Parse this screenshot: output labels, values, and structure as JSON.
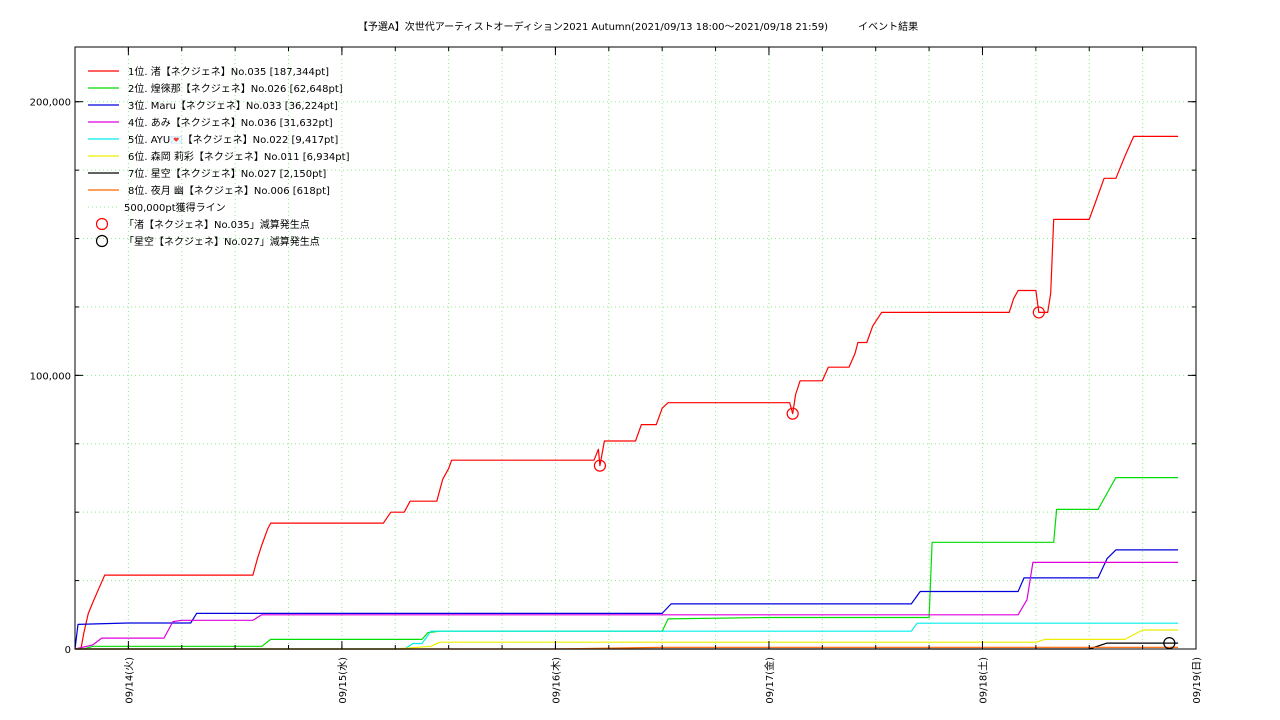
{
  "chart_data": {
    "type": "line",
    "title": "【予選A】次世代アーティストオーディション2021 Autumn(2021/09/13 18:00～2021/09/18 21:59)　　　イベント結果",
    "xlabel": "",
    "ylabel": "",
    "x_unit": "date (2021)",
    "xlim": [
      "09/13 18:00",
      "09/19 00:00"
    ],
    "ylim": [
      0,
      220000
    ],
    "y_ticks": [
      {
        "value": 0,
        "label": "0"
      },
      {
        "value": 100000,
        "label": "100,000"
      },
      {
        "value": 200000,
        "label": "200,000"
      }
    ],
    "x_ticks": [
      {
        "value": "09/14 00:00",
        "label": "09/14(火)"
      },
      {
        "value": "09/15 00:00",
        "label": "09/15(水)"
      },
      {
        "value": "09/16 00:00",
        "label": "09/16(木)"
      },
      {
        "value": "09/17 00:00",
        "label": "09/17(金)"
      },
      {
        "value": "09/18 00:00",
        "label": "09/18(土)"
      },
      {
        "value": "09/19 00:00",
        "label": "09/19(日)"
      }
    ],
    "grid": true,
    "legend_position": "top-left",
    "reference_line": {
      "value": 500000,
      "label": "500,000pt獲得ライン",
      "color": "#88ee88"
    },
    "series": [
      {
        "name": "1位. 渚【ネクジェネ】No.035 [187,344pt]",
        "color": "#ff0000",
        "points": [
          [
            "09/13 18:00",
            0
          ],
          [
            "09/13 18:40",
            0
          ],
          [
            "09/13 19:00",
            6000
          ],
          [
            "09/13 19:30",
            13000
          ],
          [
            "09/13 20:00",
            17000
          ],
          [
            "09/13 20:40",
            22000
          ],
          [
            "09/13 21:20",
            27000
          ],
          [
            "09/14 00:00",
            27000
          ],
          [
            "09/14 12:00",
            27000
          ],
          [
            "09/14 14:00",
            27000
          ],
          [
            "09/14 14:30",
            33000
          ],
          [
            "09/14 15:00",
            38000
          ],
          [
            "09/14 15:40",
            44000
          ],
          [
            "09/14 16:00",
            46000
          ],
          [
            "09/14 20:00",
            46000
          ],
          [
            "09/15 00:00",
            46000
          ],
          [
            "09/15 04:40",
            46000
          ],
          [
            "09/15 05:30",
            50000
          ],
          [
            "09/15 07:00",
            50000
          ],
          [
            "09/15 07:40",
            54000
          ],
          [
            "09/15 10:40",
            54000
          ],
          [
            "09/15 11:20",
            62000
          ],
          [
            "09/15 12:00",
            66000
          ],
          [
            "09/15 12:20",
            69000
          ],
          [
            "09/15 18:00",
            69000
          ],
          [
            "09/16 00:00",
            69000
          ],
          [
            "09/16 04:20",
            69000
          ],
          [
            "09/16 04:50",
            73000
          ],
          [
            "09/16 05:00",
            67000
          ],
          [
            "09/16 05:30",
            76000
          ],
          [
            "09/16 09:00",
            76000
          ],
          [
            "09/16 09:40",
            82000
          ],
          [
            "09/16 11:20",
            82000
          ],
          [
            "09/16 12:00",
            88000
          ],
          [
            "09/16 12:40",
            90000
          ],
          [
            "09/17 00:00",
            90000
          ],
          [
            "09/17 02:20",
            90000
          ],
          [
            "09/17 02:40",
            86000
          ],
          [
            "09/17 03:00",
            93000
          ],
          [
            "09/17 03:30",
            98000
          ],
          [
            "09/17 06:00",
            98000
          ],
          [
            "09/17 06:40",
            103000
          ],
          [
            "09/17 09:00",
            103000
          ],
          [
            "09/17 09:40",
            108000
          ],
          [
            "09/17 10:00",
            112000
          ],
          [
            "09/17 11:00",
            112000
          ],
          [
            "09/17 11:40",
            118000
          ],
          [
            "09/17 12:40",
            123000
          ],
          [
            "09/17 18:00",
            123000
          ],
          [
            "09/18 00:00",
            123000
          ],
          [
            "09/18 03:00",
            123000
          ],
          [
            "09/18 03:30",
            128000
          ],
          [
            "09/18 04:00",
            131000
          ],
          [
            "09/18 06:00",
            131000
          ],
          [
            "09/18 06:20",
            123000
          ],
          [
            "09/18 07:20",
            123000
          ],
          [
            "09/18 07:40",
            130000
          ],
          [
            "09/18 08:00",
            157000
          ],
          [
            "09/18 12:00",
            157000
          ],
          [
            "09/18 12:40",
            163000
          ],
          [
            "09/18 13:40",
            172000
          ],
          [
            "09/18 15:00",
            172000
          ],
          [
            "09/18 16:00",
            180000
          ],
          [
            "09/18 17:00",
            187344
          ],
          [
            "09/18 21:59",
            187344
          ]
        ]
      },
      {
        "name": "2位. 煌徠那【ネクジェネ】No.026 [62,648pt]",
        "color": "#00dd00",
        "points": [
          [
            "09/13 18:00",
            0
          ],
          [
            "09/13 19:00",
            0
          ],
          [
            "09/13 20:00",
            1000
          ],
          [
            "09/14 00:00",
            1000
          ],
          [
            "09/14 15:00",
            1000
          ],
          [
            "09/14 16:00",
            3500
          ],
          [
            "09/15 00:00",
            3500
          ],
          [
            "09/15 09:00",
            3500
          ],
          [
            "09/15 09:40",
            6000
          ],
          [
            "09/15 11:00",
            6500
          ],
          [
            "09/16 00:00",
            6500
          ],
          [
            "09/16 12:00",
            6500
          ],
          [
            "09/16 12:40",
            11000
          ],
          [
            "09/17 00:00",
            11500
          ],
          [
            "09/17 18:00",
            11500
          ],
          [
            "09/17 18:20",
            39000
          ],
          [
            "09/18 00:00",
            39000
          ],
          [
            "09/18 06:00",
            39000
          ],
          [
            "09/18 08:00",
            39000
          ],
          [
            "09/18 08:20",
            51000
          ],
          [
            "09/18 13:00",
            51000
          ],
          [
            "09/18 13:40",
            55000
          ],
          [
            "09/18 15:00",
            62648
          ],
          [
            "09/18 21:59",
            62648
          ]
        ]
      },
      {
        "name": "3位. Maru【ネクジェネ】No.033 [36,224pt]",
        "color": "#0000dd",
        "points": [
          [
            "09/13 18:00",
            0
          ],
          [
            "09/13 18:20",
            9000
          ],
          [
            "09/14 00:00",
            9500
          ],
          [
            "09/14 06:00",
            9500
          ],
          [
            "09/14 07:00",
            9500
          ],
          [
            "09/14 07:40",
            13000
          ],
          [
            "09/15 00:00",
            13000
          ],
          [
            "09/16 00:00",
            13000
          ],
          [
            "09/16 12:00",
            13000
          ],
          [
            "09/16 13:00",
            16500
          ],
          [
            "09/17 00:00",
            16500
          ],
          [
            "09/17 16:00",
            16500
          ],
          [
            "09/17 17:00",
            21000
          ],
          [
            "09/18 00:00",
            21000
          ],
          [
            "09/18 04:00",
            21000
          ],
          [
            "09/18 04:40",
            26000
          ],
          [
            "09/18 13:00",
            26000
          ],
          [
            "09/18 14:00",
            33000
          ],
          [
            "09/18 15:00",
            36224
          ],
          [
            "09/18 21:59",
            36224
          ]
        ]
      },
      {
        "name": "4位. あみ【ネクジェネ】No.036 [31,632pt]",
        "color": "#dd00dd",
        "points": [
          [
            "09/13 18:00",
            0
          ],
          [
            "09/13 20:00",
            1500
          ],
          [
            "09/13 21:00",
            4000
          ],
          [
            "09/14 00:00",
            4000
          ],
          [
            "09/14 04:00",
            4000
          ],
          [
            "09/14 05:00",
            10000
          ],
          [
            "09/14 06:00",
            10500
          ],
          [
            "09/14 14:00",
            10500
          ],
          [
            "09/14 15:00",
            12500
          ],
          [
            "09/15 00:00",
            12500
          ],
          [
            "09/16 00:00",
            12500
          ],
          [
            "09/17 00:00",
            12500
          ],
          [
            "09/18 04:00",
            12500
          ],
          [
            "09/18 05:00",
            18000
          ],
          [
            "09/18 05:40",
            31632
          ],
          [
            "09/18 21:59",
            31632
          ]
        ]
      },
      {
        "name": "5位. AYU💌【ネクジェネ】No.022 [9,417pt]",
        "color": "#00eeee",
        "points": [
          [
            "09/13 18:00",
            0
          ],
          [
            "09/15 00:00",
            0
          ],
          [
            "09/15 07:00",
            0
          ],
          [
            "09/15 08:00",
            2000
          ],
          [
            "09/15 09:00",
            2000
          ],
          [
            "09/15 10:00",
            6500
          ],
          [
            "09/16 00:00",
            6500
          ],
          [
            "09/17 00:00",
            6500
          ],
          [
            "09/17 16:00",
            6500
          ],
          [
            "09/17 16:40",
            9417
          ],
          [
            "09/18 21:59",
            9417
          ]
        ]
      },
      {
        "name": "6位. 森岡 莉彩【ネクジェネ】No.011 [6,934pt]",
        "color": "#eeee00",
        "points": [
          [
            "09/13 18:00",
            0
          ],
          [
            "09/15 06:00",
            0
          ],
          [
            "09/15 10:00",
            1000
          ],
          [
            "09/15 11:00",
            2500
          ],
          [
            "09/16 00:00",
            2500
          ],
          [
            "09/17 00:00",
            2500
          ],
          [
            "09/18 06:00",
            2500
          ],
          [
            "09/18 07:00",
            3500
          ],
          [
            "09/18 16:00",
            3500
          ],
          [
            "09/18 18:00",
            6934
          ],
          [
            "09/18 21:59",
            6934
          ]
        ]
      },
      {
        "name": "7位. 星空【ネクジェネ】No.027 [2,150pt]",
        "color": "#000000",
        "points": [
          [
            "09/13 18:00",
            0
          ],
          [
            "09/18 12:00",
            0
          ],
          [
            "09/18 14:00",
            2150
          ],
          [
            "09/18 21:59",
            2150
          ]
        ]
      },
      {
        "name": "8位. 夜月 幽【ネクジェネ】No.006 [618pt]",
        "color": "#ff6600",
        "points": [
          [
            "09/13 18:00",
            0
          ],
          [
            "09/16 00:00",
            0
          ],
          [
            "09/16 12:00",
            618
          ],
          [
            "09/18 21:59",
            618
          ]
        ]
      }
    ],
    "deduction_markers": [
      {
        "name": "「渚【ネクジェネ】No.035」減算発生点",
        "color": "#ff0000",
        "points": [
          [
            "09/16 05:00",
            67000
          ],
          [
            "09/17 02:40",
            86000
          ],
          [
            "09/18 06:20",
            123000
          ]
        ]
      },
      {
        "name": "「星空【ネクジェネ】No.027」減算発生点",
        "color": "#000000",
        "points": [
          [
            "09/18 21:00",
            2150
          ]
        ]
      }
    ]
  }
}
